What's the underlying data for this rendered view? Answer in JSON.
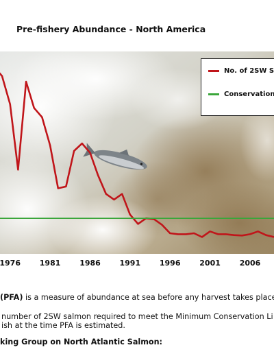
{
  "chart_data": {
    "type": "line",
    "title": "Pre-fishery Abundance - North America",
    "x_tick_labels": [
      "1976",
      "1981",
      "1986",
      "1991",
      "1996",
      "2001",
      "2006"
    ],
    "series": [
      {
        "name": "No. of 2SW S",
        "color": "#c0151a",
        "x": [
          1972,
          1973,
          1974,
          1975,
          1976,
          1977,
          1978,
          1979,
          1980,
          1981,
          1982,
          1983,
          1984,
          1985,
          1986,
          1987,
          1988,
          1989,
          1990,
          1991,
          1992,
          1993,
          1994,
          1995,
          1996,
          1997,
          1998,
          1999,
          2000,
          2001,
          2002,
          2003,
          2004,
          2005,
          2006,
          2007,
          2008,
          2009
        ],
        "y": [
          97,
          90,
          100,
          95,
          80,
          45,
          92,
          78,
          73,
          58,
          35,
          36,
          55,
          59,
          54,
          42,
          32,
          29,
          32,
          21,
          16,
          19,
          18.5,
          15.5,
          11,
          10.5,
          10.5,
          11,
          9,
          12,
          10.5,
          10.5,
          10,
          9.8,
          10.5,
          12,
          10,
          9
        ]
      },
      {
        "name": "Conservation",
        "color": "#3aa63a",
        "x": [
          1972,
          2009
        ],
        "y": [
          19,
          19
        ]
      }
    ],
    "xlim": [
      1972,
      2009
    ],
    "ylim": [
      0,
      110
    ],
    "background": "photo of a salmon leaping up a waterfall"
  },
  "note": {
    "line1_bold": "(PFA)",
    "line1_text": " is a measure of abundance at sea before any harvest takes place",
    "line2": "number of 2SW salmon required to meet the Minimum Conservation Li",
    "line3": "ish at the time PFA is estimated.",
    "line4": "king Group on North Atlantic Salmon:"
  }
}
